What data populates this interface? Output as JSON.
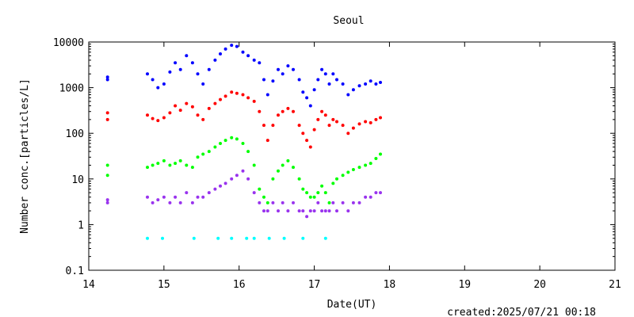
{
  "chart_data": {
    "type": "scatter",
    "title": "Seoul",
    "xlabel": "Date(UT)",
    "ylabel": "Number conc.[particles/L]",
    "footer": "created:2025/07/21 00:18",
    "xlim": [
      14,
      21
    ],
    "ylim": [
      0.1,
      10000
    ],
    "yscale": "log",
    "grid": false,
    "legend": "none",
    "x_ticks": [
      14,
      15,
      16,
      17,
      18,
      19,
      20,
      21
    ],
    "y_ticks": [
      0.1,
      1,
      10,
      100,
      1000,
      10000
    ],
    "y_tick_labels": [
      "0.1",
      "1",
      "10",
      "100",
      "1000",
      "10000"
    ],
    "series": [
      {
        "color": "#0000ff",
        "points": [
          [
            14.25,
            1500
          ],
          [
            14.25,
            1700
          ],
          [
            14.78,
            2000
          ],
          [
            14.85,
            1500
          ],
          [
            14.92,
            1000
          ],
          [
            15.0,
            1200
          ],
          [
            15.08,
            2200
          ],
          [
            15.15,
            3500
          ],
          [
            15.22,
            2500
          ],
          [
            15.3,
            5000
          ],
          [
            15.38,
            3500
          ],
          [
            15.45,
            2000
          ],
          [
            15.52,
            1200
          ],
          [
            15.6,
            2500
          ],
          [
            15.68,
            4000
          ],
          [
            15.75,
            5500
          ],
          [
            15.82,
            7000
          ],
          [
            15.9,
            8500
          ],
          [
            15.97,
            8000
          ],
          [
            16.05,
            6000
          ],
          [
            16.12,
            5000
          ],
          [
            16.2,
            4000
          ],
          [
            16.27,
            3500
          ],
          [
            16.33,
            1500
          ],
          [
            16.38,
            700
          ],
          [
            16.45,
            1400
          ],
          [
            16.52,
            2500
          ],
          [
            16.58,
            2000
          ],
          [
            16.65,
            3000
          ],
          [
            16.72,
            2500
          ],
          [
            16.8,
            1500
          ],
          [
            16.85,
            800
          ],
          [
            16.9,
            600
          ],
          [
            16.95,
            400
          ],
          [
            17.0,
            900
          ],
          [
            17.05,
            1500
          ],
          [
            17.1,
            2500
          ],
          [
            17.15,
            2000
          ],
          [
            17.2,
            1200
          ],
          [
            17.25,
            2000
          ],
          [
            17.3,
            1500
          ],
          [
            17.38,
            1200
          ],
          [
            17.45,
            700
          ],
          [
            17.52,
            900
          ],
          [
            17.6,
            1100
          ],
          [
            17.68,
            1200
          ],
          [
            17.75,
            1400
          ],
          [
            17.82,
            1200
          ],
          [
            17.88,
            1300
          ]
        ]
      },
      {
        "color": "#ff0000",
        "points": [
          [
            14.25,
            200
          ],
          [
            14.25,
            280
          ],
          [
            14.78,
            250
          ],
          [
            14.85,
            210
          ],
          [
            14.92,
            190
          ],
          [
            15.0,
            220
          ],
          [
            15.08,
            280
          ],
          [
            15.15,
            400
          ],
          [
            15.22,
            320
          ],
          [
            15.3,
            450
          ],
          [
            15.38,
            380
          ],
          [
            15.45,
            250
          ],
          [
            15.52,
            200
          ],
          [
            15.6,
            350
          ],
          [
            15.68,
            450
          ],
          [
            15.75,
            550
          ],
          [
            15.82,
            650
          ],
          [
            15.9,
            800
          ],
          [
            15.97,
            750
          ],
          [
            16.05,
            700
          ],
          [
            16.12,
            600
          ],
          [
            16.2,
            500
          ],
          [
            16.27,
            300
          ],
          [
            16.33,
            150
          ],
          [
            16.38,
            70
          ],
          [
            16.45,
            150
          ],
          [
            16.52,
            250
          ],
          [
            16.58,
            300
          ],
          [
            16.65,
            350
          ],
          [
            16.72,
            300
          ],
          [
            16.8,
            150
          ],
          [
            16.85,
            100
          ],
          [
            16.9,
            70
          ],
          [
            16.95,
            50
          ],
          [
            17.0,
            120
          ],
          [
            17.05,
            200
          ],
          [
            17.1,
            300
          ],
          [
            17.15,
            250
          ],
          [
            17.2,
            150
          ],
          [
            17.25,
            200
          ],
          [
            17.3,
            180
          ],
          [
            17.38,
            150
          ],
          [
            17.45,
            100
          ],
          [
            17.52,
            130
          ],
          [
            17.6,
            160
          ],
          [
            17.68,
            180
          ],
          [
            17.75,
            170
          ],
          [
            17.82,
            200
          ],
          [
            17.88,
            220
          ]
        ]
      },
      {
        "color": "#00ff00",
        "points": [
          [
            14.25,
            12
          ],
          [
            14.25,
            20
          ],
          [
            14.78,
            18
          ],
          [
            14.85,
            20
          ],
          [
            14.92,
            22
          ],
          [
            15.0,
            25
          ],
          [
            15.08,
            20
          ],
          [
            15.15,
            22
          ],
          [
            15.22,
            25
          ],
          [
            15.3,
            20
          ],
          [
            15.38,
            18
          ],
          [
            15.45,
            30
          ],
          [
            15.52,
            35
          ],
          [
            15.6,
            40
          ],
          [
            15.68,
            50
          ],
          [
            15.75,
            60
          ],
          [
            15.82,
            70
          ],
          [
            15.9,
            80
          ],
          [
            15.97,
            75
          ],
          [
            16.05,
            60
          ],
          [
            16.12,
            40
          ],
          [
            16.2,
            20
          ],
          [
            16.27,
            6
          ],
          [
            16.33,
            4
          ],
          [
            16.38,
            3
          ],
          [
            16.45,
            10
          ],
          [
            16.52,
            15
          ],
          [
            16.58,
            20
          ],
          [
            16.65,
            25
          ],
          [
            16.72,
            18
          ],
          [
            16.8,
            10
          ],
          [
            16.85,
            6
          ],
          [
            16.9,
            5
          ],
          [
            16.95,
            4
          ],
          [
            17.0,
            4
          ],
          [
            17.05,
            5
          ],
          [
            17.1,
            7
          ],
          [
            17.15,
            5
          ],
          [
            17.2,
            3
          ],
          [
            17.25,
            8
          ],
          [
            17.3,
            10
          ],
          [
            17.38,
            12
          ],
          [
            17.45,
            14
          ],
          [
            17.52,
            16
          ],
          [
            17.6,
            18
          ],
          [
            17.68,
            20
          ],
          [
            17.75,
            22
          ],
          [
            17.82,
            28
          ],
          [
            17.88,
            35
          ]
        ]
      },
      {
        "color": "#9933ee",
        "points": [
          [
            14.25,
            3
          ],
          [
            14.25,
            3.5
          ],
          [
            14.78,
            4
          ],
          [
            14.85,
            3
          ],
          [
            14.92,
            3.5
          ],
          [
            15.0,
            4
          ],
          [
            15.08,
            3
          ],
          [
            15.15,
            4
          ],
          [
            15.22,
            3
          ],
          [
            15.3,
            5
          ],
          [
            15.38,
            3
          ],
          [
            15.45,
            4
          ],
          [
            15.52,
            4
          ],
          [
            15.6,
            5
          ],
          [
            15.68,
            6
          ],
          [
            15.75,
            7
          ],
          [
            15.82,
            8
          ],
          [
            15.9,
            10
          ],
          [
            15.97,
            12
          ],
          [
            16.05,
            15
          ],
          [
            16.12,
            10
          ],
          [
            16.2,
            5
          ],
          [
            16.27,
            3
          ],
          [
            16.33,
            2
          ],
          [
            16.38,
            2
          ],
          [
            16.45,
            3
          ],
          [
            16.52,
            2
          ],
          [
            16.58,
            3
          ],
          [
            16.65,
            2
          ],
          [
            16.72,
            3
          ],
          [
            16.8,
            2
          ],
          [
            16.85,
            2
          ],
          [
            16.9,
            1.5
          ],
          [
            16.95,
            2
          ],
          [
            17.0,
            2
          ],
          [
            17.05,
            3
          ],
          [
            17.1,
            2
          ],
          [
            17.15,
            2
          ],
          [
            17.2,
            2
          ],
          [
            17.25,
            3
          ],
          [
            17.3,
            2
          ],
          [
            17.38,
            3
          ],
          [
            17.45,
            2
          ],
          [
            17.52,
            3
          ],
          [
            17.6,
            3
          ],
          [
            17.68,
            4
          ],
          [
            17.75,
            4
          ],
          [
            17.82,
            5
          ],
          [
            17.88,
            5
          ]
        ]
      },
      {
        "color": "#00ffff",
        "points": [
          [
            14.78,
            0.5
          ],
          [
            14.98,
            0.5
          ],
          [
            15.4,
            0.5
          ],
          [
            15.72,
            0.5
          ],
          [
            15.9,
            0.5
          ],
          [
            16.1,
            0.5
          ],
          [
            16.2,
            0.5
          ],
          [
            16.4,
            0.5
          ],
          [
            16.6,
            0.5
          ],
          [
            16.85,
            0.5
          ],
          [
            17.15,
            0.5
          ]
        ]
      }
    ]
  }
}
